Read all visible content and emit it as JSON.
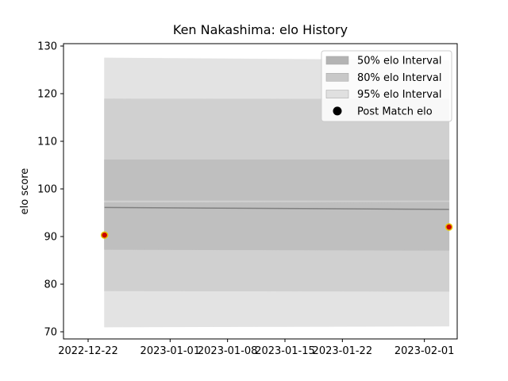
{
  "chart_data": {
    "type": "area",
    "title": "Ken Nakashima: elo History",
    "xlabel": "",
    "ylabel": "elo score",
    "x_type": "date",
    "xlim": [
      "2022-12-19",
      "2023-02-05"
    ],
    "ylim": [
      68.5,
      130.5
    ],
    "xticks": [
      "2022-12-22",
      "2023-01-01",
      "2023-01-08",
      "2023-01-15",
      "2023-01-22",
      "2023-02-01"
    ],
    "yticks": [
      70,
      80,
      90,
      100,
      110,
      120,
      130
    ],
    "x": [
      "2022-12-24",
      "2023-02-04"
    ],
    "mean": [
      96.1,
      95.7
    ],
    "bands": [
      {
        "name": "95% elo Interval",
        "lower": [
          71.0,
          71.2
        ],
        "upper": [
          127.5,
          127.0
        ],
        "color": "#e3e3e3"
      },
      {
        "name": "80% elo Interval",
        "lower": [
          78.6,
          78.5
        ],
        "upper": [
          118.9,
          118.8
        ],
        "color": "#d0d0d0"
      },
      {
        "name": "50% elo Interval",
        "lower": [
          87.3,
          87.1
        ],
        "upper": [
          97.1,
          97.2
        ],
        "color": "#bfbfbf"
      },
      {
        "name": "50% elo Interval",
        "lower": [
          97.6,
          97.6
        ],
        "upper": [
          106.1,
          106.1
        ],
        "color": "#bfbfbf"
      }
    ],
    "points": {
      "name": "Post Match elo",
      "x": [
        "2022-12-24",
        "2023-02-04"
      ],
      "y": [
        90.3,
        92.0
      ],
      "color": "#cc0000",
      "edge_color": "#e6c300"
    },
    "legend": {
      "placement": "top-right",
      "entries": [
        {
          "label": "50% elo Interval",
          "kind": "patch",
          "color": "#b3b3b3"
        },
        {
          "label": "80% elo Interval",
          "kind": "patch",
          "color": "#c8c8c8"
        },
        {
          "label": "95% elo Interval",
          "kind": "patch",
          "color": "#e0e0e0"
        },
        {
          "label": "Post Match elo",
          "kind": "marker",
          "color": "#000000"
        }
      ]
    },
    "grid": false
  }
}
